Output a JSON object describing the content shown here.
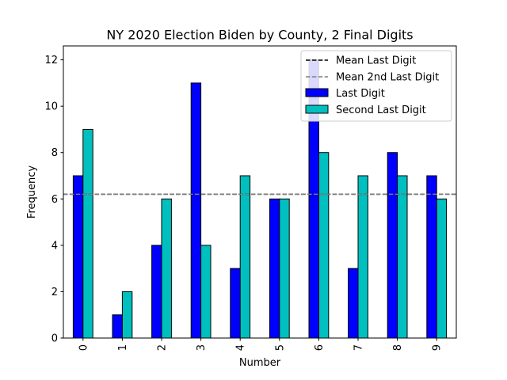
{
  "chart_data": {
    "type": "bar",
    "title": "NY 2020 Election Biden by County, 2 Final Digits",
    "xlabel": "Number",
    "ylabel": "Frequency",
    "categories": [
      "0",
      "1",
      "2",
      "3",
      "4",
      "5",
      "6",
      "7",
      "8",
      "9"
    ],
    "ylim": [
      0,
      12.6
    ],
    "yticks": [
      0,
      2,
      4,
      6,
      8,
      10,
      12
    ],
    "series": [
      {
        "name": "Last Digit",
        "color": "#0000ff",
        "values": [
          7,
          1,
          4,
          11,
          3,
          6,
          12,
          3,
          8,
          7
        ]
      },
      {
        "name": "Second Last Digit",
        "color": "#00bfbf",
        "values": [
          9,
          2,
          6,
          4,
          7,
          6,
          8,
          7,
          7,
          6
        ]
      }
    ],
    "reference_lines": [
      {
        "name": "Mean Last Digit",
        "value": 6.2,
        "color": "#000000",
        "style": "dashed"
      },
      {
        "name": "Mean 2nd Last Digit",
        "value": 6.2,
        "color": "#808080",
        "style": "dashed"
      }
    ],
    "legend_location": "top-right",
    "x_tick_rotation": "vertical",
    "grid": false
  }
}
